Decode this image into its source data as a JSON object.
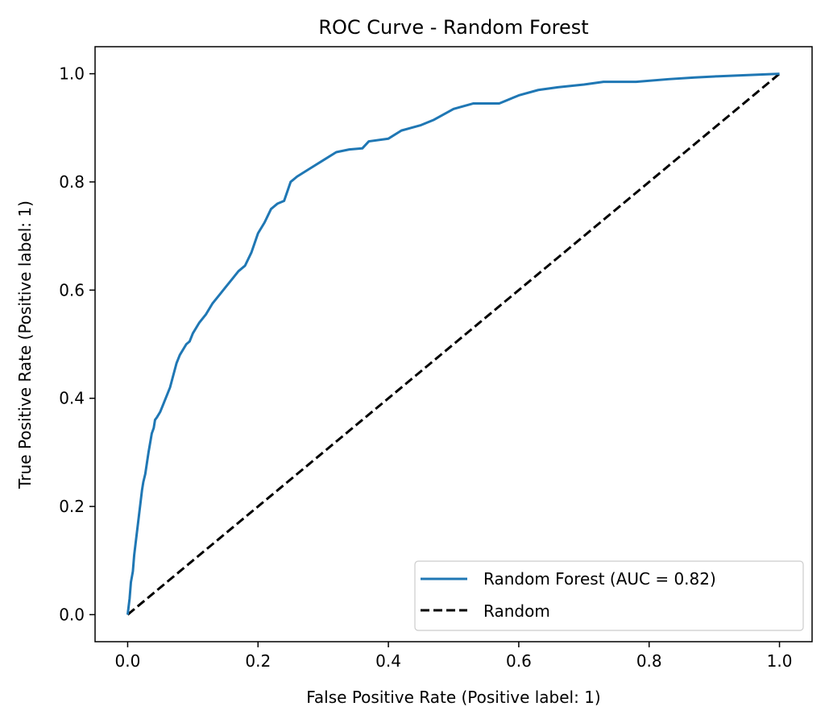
{
  "chart_data": {
    "type": "line",
    "title": "ROC Curve - Random Forest",
    "xlabel": "False Positive Rate (Positive label: 1)",
    "ylabel": "True Positive Rate (Positive label: 1)",
    "xlim": [
      -0.05,
      1.05
    ],
    "ylim": [
      -0.05,
      1.05
    ],
    "xticks": [
      0.0,
      0.2,
      0.4,
      0.6,
      0.8,
      1.0
    ],
    "xtick_labels": [
      "0.0",
      "0.2",
      "0.4",
      "0.6",
      "0.8",
      "1.0"
    ],
    "yticks": [
      0.0,
      0.2,
      0.4,
      0.6,
      0.8,
      1.0
    ],
    "ytick_labels": [
      "0.0",
      "0.2",
      "0.4",
      "0.6",
      "0.8",
      "1.0"
    ],
    "grid": false,
    "legend_position": "lower-right",
    "series": [
      {
        "name": "Random Forest (AUC = 0.82)",
        "color": "#1f77b4",
        "style": "solid",
        "x": [
          0.0,
          0.003,
          0.005,
          0.008,
          0.01,
          0.013,
          0.016,
          0.019,
          0.022,
          0.024,
          0.025,
          0.027,
          0.032,
          0.037,
          0.04,
          0.042,
          0.045,
          0.05,
          0.055,
          0.065,
          0.075,
          0.08,
          0.09,
          0.095,
          0.1,
          0.11,
          0.12,
          0.13,
          0.14,
          0.15,
          0.16,
          0.17,
          0.18,
          0.19,
          0.2,
          0.21,
          0.22,
          0.23,
          0.24,
          0.25,
          0.26,
          0.28,
          0.3,
          0.32,
          0.34,
          0.36,
          0.37,
          0.4,
          0.42,
          0.45,
          0.47,
          0.5,
          0.53,
          0.57,
          0.6,
          0.63,
          0.66,
          0.7,
          0.73,
          0.78,
          0.83,
          0.87,
          0.9,
          0.94,
          1.0
        ],
        "y": [
          0.0,
          0.03,
          0.06,
          0.08,
          0.11,
          0.14,
          0.17,
          0.2,
          0.23,
          0.245,
          0.25,
          0.26,
          0.3,
          0.335,
          0.345,
          0.36,
          0.365,
          0.375,
          0.39,
          0.42,
          0.465,
          0.48,
          0.5,
          0.505,
          0.52,
          0.54,
          0.555,
          0.575,
          0.59,
          0.605,
          0.62,
          0.635,
          0.645,
          0.67,
          0.705,
          0.725,
          0.75,
          0.76,
          0.765,
          0.8,
          0.81,
          0.825,
          0.84,
          0.855,
          0.86,
          0.862,
          0.875,
          0.88,
          0.895,
          0.905,
          0.915,
          0.935,
          0.945,
          0.945,
          0.96,
          0.97,
          0.975,
          0.98,
          0.985,
          0.985,
          0.99,
          0.993,
          0.995,
          0.997,
          1.0
        ]
      },
      {
        "name": "Random",
        "color": "#000000",
        "style": "dashed",
        "x": [
          0.0,
          1.0
        ],
        "y": [
          0.0,
          1.0
        ]
      }
    ]
  }
}
